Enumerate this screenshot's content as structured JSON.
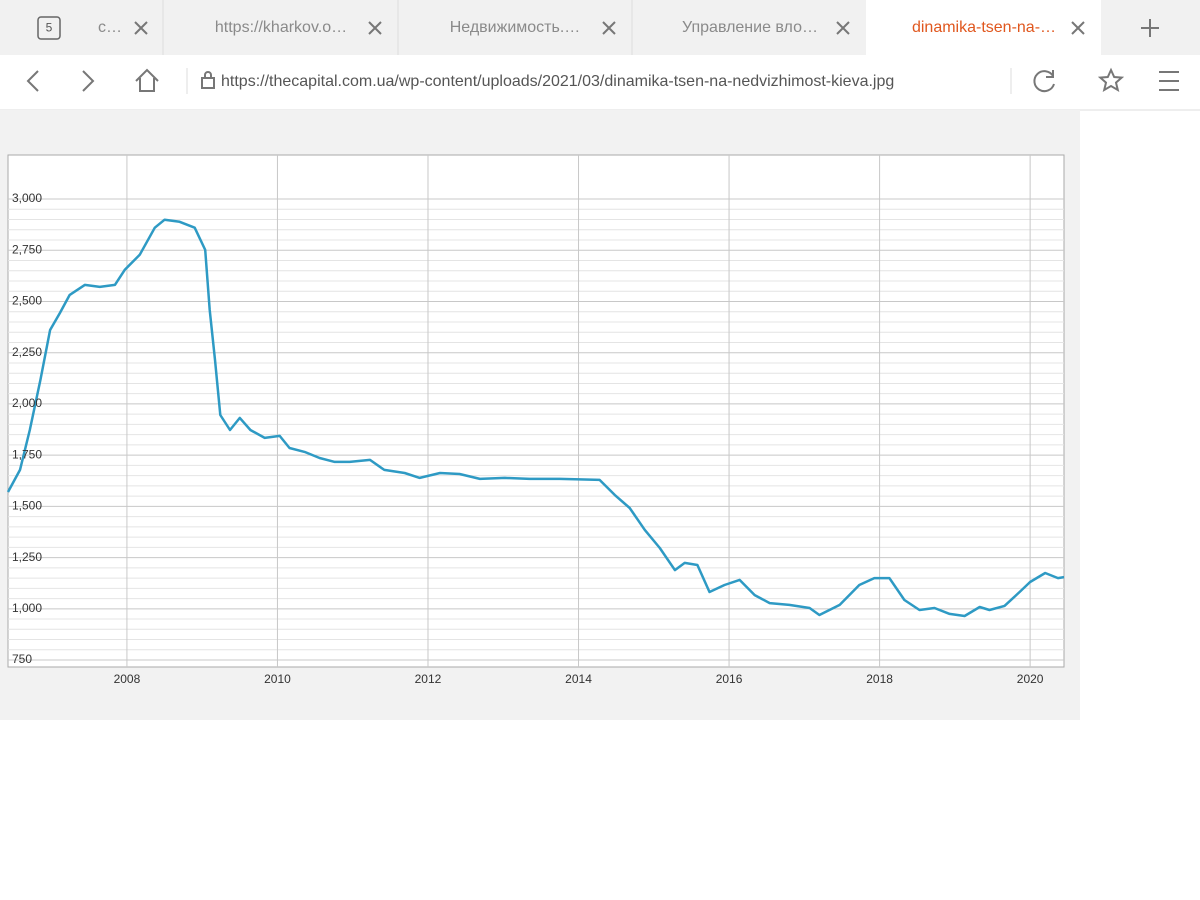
{
  "browser": {
    "tab_count": "5",
    "tabs": [
      "с…",
      "https://kharkov.o…",
      "Недвижимость.…",
      "Управление вло…",
      "dinamika-tsen-na-…"
    ],
    "url": "https://thecapital.com.ua/wp-content/uploads/2021/03/dinamika-tsen-na-nedvizhimost-kieva.jpg"
  },
  "chart_data": {
    "type": "line",
    "x": [
      2006.42,
      2006.58,
      2006.71,
      2006.85,
      2006.98,
      2007.11,
      2007.24,
      2007.44,
      2007.64,
      2007.84,
      2007.97,
      2008.17,
      2008.37,
      2008.5,
      2008.7,
      2008.9,
      2009.04,
      2009.1,
      2009.17,
      2009.24,
      2009.37,
      2009.5,
      2009.64,
      2009.83,
      2010.03,
      2010.16,
      2010.36,
      2010.56,
      2010.76,
      2010.96,
      2011.23,
      2011.42,
      2011.69,
      2011.89,
      2012.16,
      2012.42,
      2012.69,
      2013.02,
      2013.35,
      2013.75,
      2014.28,
      2014.48,
      2014.68,
      2014.88,
      2015.08,
      2015.28,
      2015.41,
      2015.58,
      2015.74,
      2015.94,
      2016.14,
      2016.34,
      2016.54,
      2016.8,
      2017.07,
      2017.2,
      2017.47,
      2017.73,
      2017.93,
      2018.13,
      2018.33,
      2018.53,
      2018.73,
      2018.93,
      2019.13,
      2019.33,
      2019.46,
      2019.66,
      2019.86,
      2020.0,
      2020.2,
      2020.37,
      2020.45
    ],
    "values": [
      1570,
      1678,
      1873,
      2117,
      2361,
      2444,
      2532,
      2581,
      2571,
      2581,
      2654,
      2728,
      2860,
      2899,
      2889,
      2860,
      2752,
      2459,
      2215,
      1946,
      1873,
      1932,
      1873,
      1834,
      1844,
      1785,
      1766,
      1736,
      1717,
      1717,
      1727,
      1678,
      1663,
      1639,
      1663,
      1658,
      1634,
      1639,
      1634,
      1634,
      1629,
      1556,
      1492,
      1385,
      1297,
      1189,
      1224,
      1214,
      1082,
      1116,
      1141,
      1067,
      1028,
      1019,
      1004,
      970,
      1019,
      1116,
      1150,
      1150,
      1043,
      994,
      1004,
      975,
      965,
      1009,
      994,
      1014,
      1082,
      1131,
      1175,
      1150,
      1155
    ],
    "color": "#2e9ac4",
    "xlim": [
      2006.42,
      2020.45
    ],
    "ylim": [
      716,
      3215
    ],
    "xticks": [
      2008,
      2010,
      2012,
      2014,
      2016,
      2018,
      2020
    ],
    "yticks": [
      750,
      {
        "value": 1000,
        "label": "1,000"
      },
      {
        "value": 1250,
        "label": "1,250"
      },
      {
        "value": 1500,
        "label": "1,500"
      },
      {
        "value": 1750,
        "label": "1,750"
      },
      {
        "value": 2000,
        "label": "2,000"
      },
      {
        "value": 2250,
        "label": "2,250"
      },
      {
        "value": 2500,
        "label": "2,500"
      },
      {
        "value": 2750,
        "label": "2,750"
      },
      {
        "value": 3000,
        "label": "3,000"
      }
    ],
    "grid": true
  }
}
